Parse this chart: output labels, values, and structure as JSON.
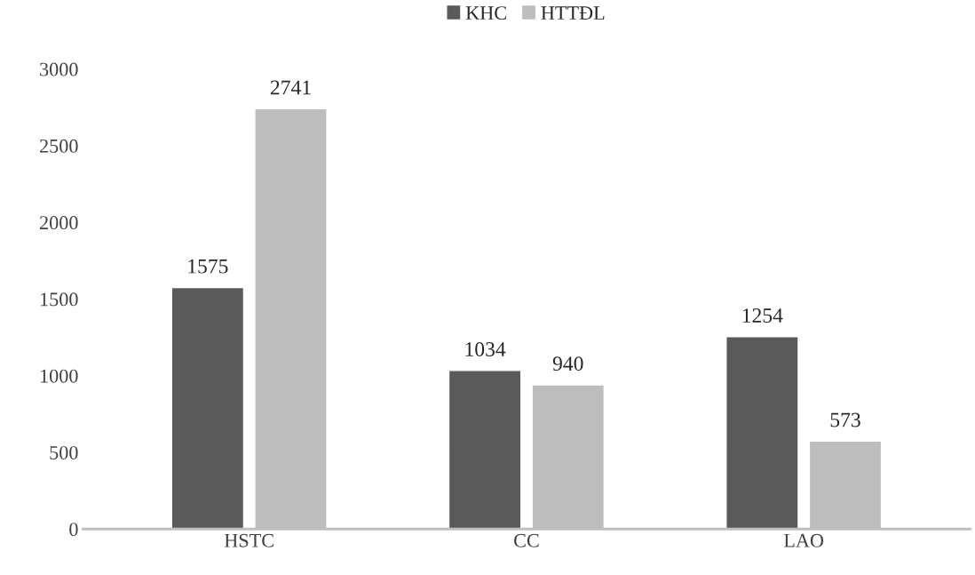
{
  "chart_data": {
    "type": "bar",
    "categories": [
      "HSTC",
      "CC",
      "LAO"
    ],
    "series": [
      {
        "name": "KHC",
        "color": "#5a5a5a",
        "values": [
          1575,
          1034,
          1254
        ]
      },
      {
        "name": "HTTĐL",
        "color": "#bdbdbd",
        "values": [
          2741,
          940,
          573
        ]
      }
    ],
    "ylim": [
      0,
      3000
    ],
    "yticks": [
      0,
      500,
      1000,
      1500,
      2000,
      2500,
      3000
    ],
    "grid": false,
    "legend": "top",
    "data_labels": true
  }
}
